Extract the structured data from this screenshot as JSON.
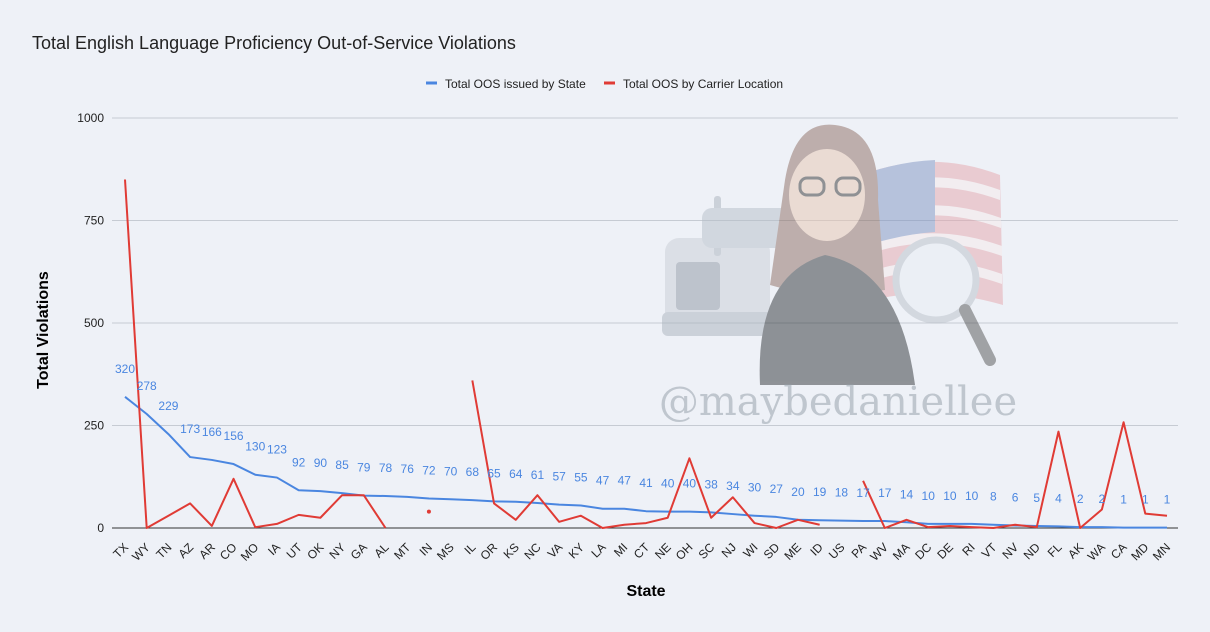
{
  "chart_data": {
    "type": "line",
    "title": "Total English Language Proficiency Out-of-Service Violations",
    "xlabel": "State",
    "ylabel": "Total Violations",
    "ylim": [
      0,
      1000
    ],
    "yticks": [
      0,
      250,
      500,
      750,
      1000
    ],
    "legend_position": "top-center",
    "grid": true,
    "categories": [
      "TX",
      "WY",
      "TN",
      "AZ",
      "AR",
      "CO",
      "MO",
      "IA",
      "UT",
      "OK",
      "NY",
      "GA",
      "AL",
      "MT",
      "IN",
      "MS",
      "IL",
      "OR",
      "KS",
      "NC",
      "VA",
      "KY",
      "LA",
      "MI",
      "CT",
      "NE",
      "OH",
      "SC",
      "NJ",
      "WI",
      "SD",
      "ME",
      "ID",
      "US",
      "PA",
      "WV",
      "MA",
      "DC",
      "DE",
      "RI",
      "VT",
      "NV",
      "ND",
      "FL",
      "AK",
      "WA",
      "CA",
      "MD",
      "MN"
    ],
    "series": [
      {
        "name": "Total OOS issued by State",
        "color": "#4a86e0",
        "values": [
          320,
          278,
          229,
          173,
          166,
          156,
          130,
          123,
          92,
          90,
          85,
          79,
          78,
          76,
          72,
          70,
          68,
          65,
          64,
          61,
          57,
          55,
          47,
          47,
          41,
          40,
          40,
          38,
          34,
          30,
          27,
          20,
          19,
          18,
          17,
          17,
          14,
          10,
          10,
          10,
          8,
          6,
          5,
          4,
          2,
          2,
          1,
          1,
          1
        ]
      },
      {
        "name": "Total OOS by Carrier Location",
        "color": "#e03b35",
        "values": [
          850,
          0,
          30,
          60,
          5,
          120,
          2,
          10,
          32,
          25,
          80,
          80,
          0,
          null,
          40,
          null,
          360,
          60,
          20,
          80,
          15,
          30,
          0,
          8,
          12,
          25,
          170,
          25,
          75,
          12,
          0,
          20,
          8,
          null,
          115,
          0,
          20,
          2,
          5,
          2,
          0,
          8,
          2,
          235,
          0,
          45,
          258,
          35,
          30
        ]
      }
    ]
  },
  "watermark": "@maybedaniellee",
  "illustration": "woman-truck-flag-illustration"
}
